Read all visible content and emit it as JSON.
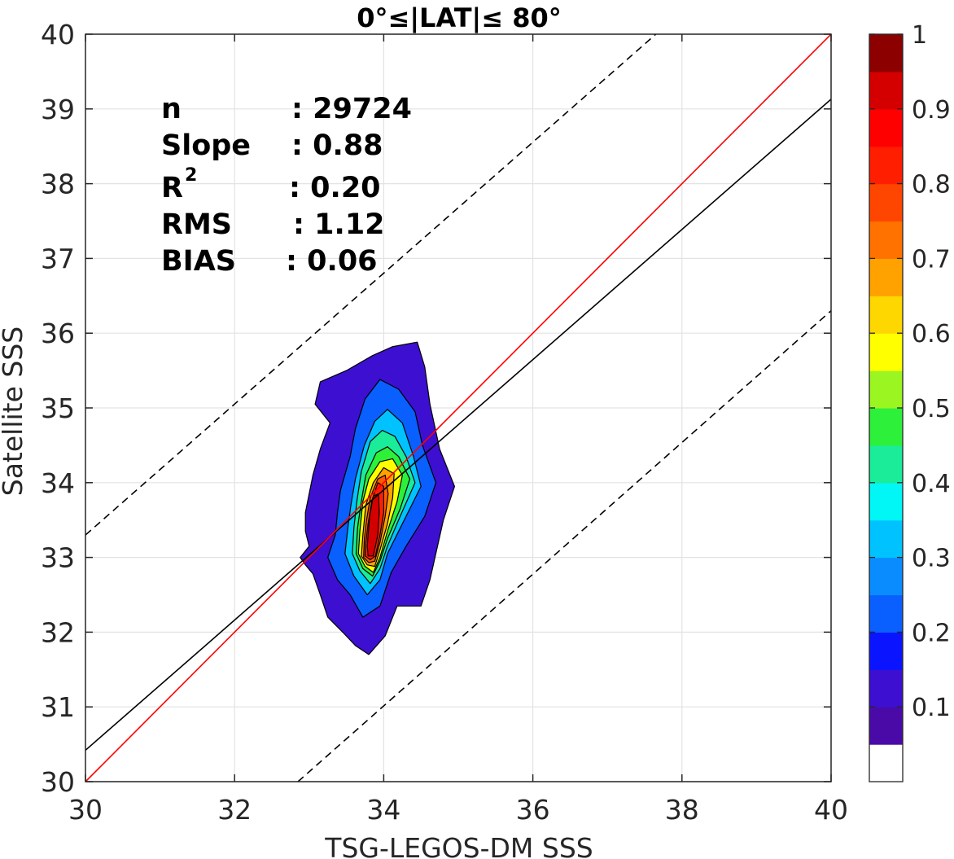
{
  "chart_data": {
    "type": "contour",
    "title": "0°≤|LAT|≤ 80°",
    "xlabel": "TSG-LEGOS-DM SSS",
    "ylabel": "Satellite SSS",
    "xlim": [
      30,
      40
    ],
    "ylim": [
      30,
      40
    ],
    "xticks": [
      "30",
      "32",
      "34",
      "36",
      "38",
      "40"
    ],
    "yticks": [
      "30",
      "31",
      "32",
      "33",
      "34",
      "35",
      "36",
      "37",
      "38",
      "39",
      "40"
    ],
    "grid": true,
    "stats": [
      {
        "key": "n",
        "value": ": 29724"
      },
      {
        "key": "Slope",
        "value": ": 0.88"
      },
      {
        "key": "R",
        "sup": "2",
        "value": ": 0.20"
      },
      {
        "key": "RMS",
        "value": ": 1.12"
      },
      {
        "key": "BIAS",
        "value": ": 0.06"
      }
    ],
    "lines": {
      "identity": {
        "color": "#ff0000",
        "points": [
          [
            30,
            30
          ],
          [
            40,
            40
          ]
        ]
      },
      "fit": {
        "color": "#000000",
        "points": [
          [
            30,
            30.42
          ],
          [
            40,
            39.13
          ]
        ]
      },
      "upper_bound": {
        "color": "#000000",
        "dash": true,
        "points": [
          [
            30,
            33.3
          ],
          [
            37.65,
            40
          ]
        ]
      },
      "lower_bound": {
        "color": "#000000",
        "dash": true,
        "points": [
          [
            32.85,
            30
          ],
          [
            40,
            36.3
          ]
        ]
      }
    },
    "contour_levels": [
      {
        "level": 0.05,
        "fill": "#3d0fd1",
        "points": [
          [
            33.0,
            33.15
          ],
          [
            32.88,
            33.0
          ],
          [
            32.95,
            32.9
          ],
          [
            33.05,
            32.78
          ],
          [
            33.15,
            32.5
          ],
          [
            33.25,
            32.2
          ],
          [
            33.45,
            32.0
          ],
          [
            33.62,
            31.82
          ],
          [
            33.8,
            31.7
          ],
          [
            34.02,
            31.95
          ],
          [
            34.18,
            32.35
          ],
          [
            34.5,
            32.35
          ],
          [
            34.62,
            32.7
          ],
          [
            34.8,
            33.5
          ],
          [
            34.95,
            33.95
          ],
          [
            34.75,
            34.45
          ],
          [
            34.62,
            35.05
          ],
          [
            34.55,
            35.55
          ],
          [
            34.45,
            35.88
          ],
          [
            34.12,
            35.82
          ],
          [
            33.85,
            35.7
          ],
          [
            33.5,
            35.5
          ],
          [
            33.15,
            35.35
          ],
          [
            33.08,
            35.05
          ],
          [
            33.28,
            34.8
          ],
          [
            33.15,
            34.45
          ],
          [
            33.05,
            34.1
          ],
          [
            32.95,
            33.6
          ],
          [
            32.95,
            33.35
          ]
        ]
      },
      {
        "level": 0.15,
        "fill": "#0a5fff",
        "points": [
          [
            33.35,
            33.3
          ],
          [
            33.25,
            33.0
          ],
          [
            33.38,
            32.7
          ],
          [
            33.55,
            32.5
          ],
          [
            33.72,
            32.2
          ],
          [
            33.95,
            32.35
          ],
          [
            34.1,
            32.8
          ],
          [
            34.3,
            33.15
          ],
          [
            34.55,
            33.55
          ],
          [
            34.7,
            34.0
          ],
          [
            34.52,
            34.5
          ],
          [
            34.42,
            34.95
          ],
          [
            34.2,
            35.25
          ],
          [
            33.95,
            35.38
          ],
          [
            33.75,
            35.12
          ],
          [
            33.62,
            34.72
          ],
          [
            33.55,
            34.35
          ],
          [
            33.42,
            33.9
          ],
          [
            33.38,
            33.6
          ]
        ]
      },
      {
        "level": 0.25,
        "fill": "#00c2ff",
        "points": [
          [
            33.52,
            33.4
          ],
          [
            33.48,
            33.05
          ],
          [
            33.6,
            32.75
          ],
          [
            33.78,
            32.5
          ],
          [
            33.95,
            32.7
          ],
          [
            34.05,
            33.05
          ],
          [
            34.25,
            33.45
          ],
          [
            34.5,
            33.95
          ],
          [
            34.4,
            34.35
          ],
          [
            34.25,
            34.8
          ],
          [
            34.05,
            34.98
          ],
          [
            33.88,
            34.82
          ],
          [
            33.74,
            34.5
          ],
          [
            33.62,
            34.05
          ],
          [
            33.56,
            33.7
          ]
        ]
      },
      {
        "level": 0.35,
        "fill": "#1aec9a",
        "points": [
          [
            33.6,
            33.4
          ],
          [
            33.58,
            33.05
          ],
          [
            33.68,
            32.82
          ],
          [
            33.82,
            32.65
          ],
          [
            33.95,
            32.85
          ],
          [
            34.05,
            33.15
          ],
          [
            34.22,
            33.55
          ],
          [
            34.42,
            34.0
          ],
          [
            34.3,
            34.35
          ],
          [
            34.15,
            34.62
          ],
          [
            33.98,
            34.7
          ],
          [
            33.82,
            34.55
          ],
          [
            33.7,
            34.15
          ],
          [
            33.64,
            33.75
          ]
        ]
      },
      {
        "level": 0.45,
        "fill": "#2df03a",
        "points": [
          [
            33.65,
            33.4
          ],
          [
            33.63,
            33.05
          ],
          [
            33.72,
            32.85
          ],
          [
            33.85,
            32.75
          ],
          [
            33.95,
            32.95
          ],
          [
            34.05,
            33.25
          ],
          [
            34.22,
            33.65
          ],
          [
            34.35,
            34.05
          ],
          [
            34.2,
            34.35
          ],
          [
            34.05,
            34.48
          ],
          [
            33.9,
            34.4
          ],
          [
            33.76,
            34.1
          ],
          [
            33.7,
            33.75
          ]
        ]
      },
      {
        "level": 0.55,
        "fill": "#ffff00",
        "points": [
          [
            33.68,
            33.35
          ],
          [
            33.66,
            33.05
          ],
          [
            33.75,
            32.88
          ],
          [
            33.86,
            32.8
          ],
          [
            33.95,
            33.0
          ],
          [
            34.05,
            33.35
          ],
          [
            34.18,
            33.75
          ],
          [
            34.25,
            34.1
          ],
          [
            34.12,
            34.32
          ],
          [
            33.95,
            34.28
          ],
          [
            33.8,
            34.05
          ],
          [
            33.72,
            33.75
          ]
        ]
      },
      {
        "level": 0.65,
        "fill": "#ffa200",
        "points": [
          [
            33.72,
            33.3
          ],
          [
            33.7,
            33.02
          ],
          [
            33.78,
            32.9
          ],
          [
            33.88,
            32.88
          ],
          [
            33.95,
            33.1
          ],
          [
            34.05,
            33.45
          ],
          [
            34.12,
            33.8
          ],
          [
            34.14,
            34.12
          ],
          [
            34.0,
            34.2
          ],
          [
            33.86,
            34.0
          ],
          [
            33.76,
            33.7
          ]
        ]
      },
      {
        "level": 0.75,
        "fill": "#ff5a00",
        "points": [
          [
            33.74,
            33.25
          ],
          [
            33.73,
            33.0
          ],
          [
            33.8,
            32.93
          ],
          [
            33.88,
            32.95
          ],
          [
            33.95,
            33.2
          ],
          [
            34.02,
            33.55
          ],
          [
            34.06,
            33.85
          ],
          [
            34.02,
            34.1
          ],
          [
            33.92,
            34.05
          ],
          [
            33.82,
            33.8
          ],
          [
            33.77,
            33.5
          ]
        ]
      },
      {
        "level": 0.85,
        "fill": "#ff1e00",
        "points": [
          [
            33.76,
            33.2
          ],
          [
            33.75,
            33.02
          ],
          [
            33.82,
            32.97
          ],
          [
            33.89,
            33.02
          ],
          [
            33.95,
            33.3
          ],
          [
            34.0,
            33.6
          ],
          [
            34.0,
            33.95
          ],
          [
            33.92,
            34.0
          ],
          [
            33.84,
            33.75
          ],
          [
            33.79,
            33.45
          ]
        ]
      },
      {
        "level": 0.95,
        "fill": "#d40000",
        "points": [
          [
            33.78,
            33.15
          ],
          [
            33.79,
            33.02
          ],
          [
            33.86,
            33.02
          ],
          [
            33.92,
            33.3
          ],
          [
            33.94,
            33.6
          ],
          [
            33.93,
            33.85
          ],
          [
            33.86,
            33.82
          ],
          [
            33.81,
            33.55
          ]
        ]
      }
    ],
    "colorbar": {
      "ticks": [
        "1",
        "0.9",
        "0.8",
        "0.7",
        "0.6",
        "0.5",
        "0.4",
        "0.3",
        "0.2",
        "0.1"
      ],
      "colors_bottom_to_top": [
        "#ffffff",
        "#4a0aa8",
        "#3d0fd1",
        "#0b14ff",
        "#0a5fff",
        "#0a8cff",
        "#00c2ff",
        "#00f7f5",
        "#1aec9a",
        "#2df03a",
        "#9bf520",
        "#ffff00",
        "#ffd700",
        "#ffa200",
        "#ff7200",
        "#ff4600",
        "#ff1e00",
        "#ff0000",
        "#d40000",
        "#8c0000"
      ]
    }
  }
}
